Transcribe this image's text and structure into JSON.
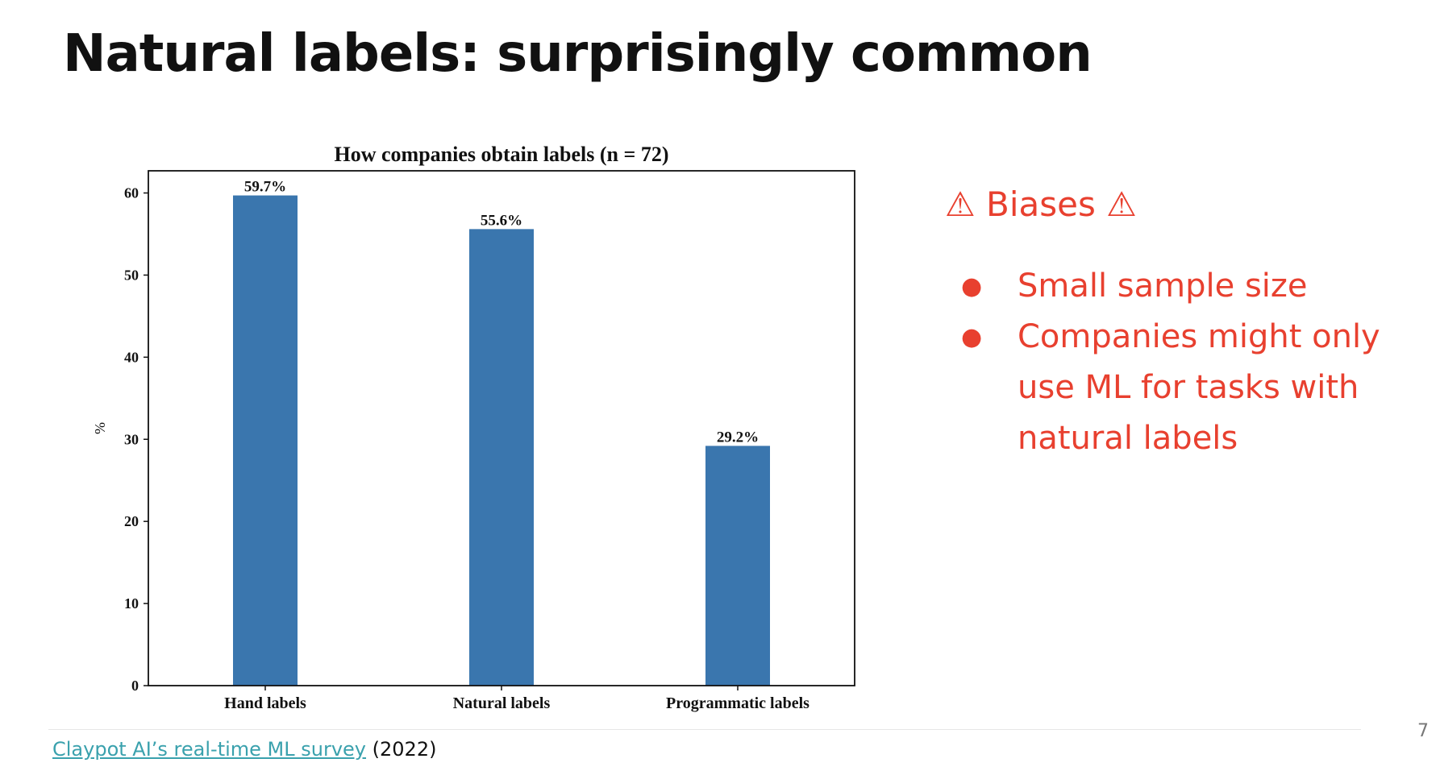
{
  "slide": {
    "title": "Natural labels: surprisingly common",
    "page_number": "7"
  },
  "biases": {
    "heading": "⚠ Biases ⚠",
    "items": [
      "Small sample size",
      "Companies might only use ML for tasks with natural labels"
    ]
  },
  "source": {
    "link_text": "Claypot AI’s real-time ML survey",
    "year": "(2022)"
  },
  "chart_data": {
    "type": "bar",
    "title": "How companies obtain labels (n = 72)",
    "xlabel": "",
    "ylabel": "%",
    "categories": [
      "Hand labels",
      "Natural labels",
      "Programmatic labels"
    ],
    "values": [
      59.7,
      55.6,
      29.2
    ],
    "data_labels": [
      "59.7%",
      "55.6%",
      "29.2%"
    ],
    "yticks": [
      0,
      10,
      20,
      30,
      40,
      50,
      60
    ],
    "ylim": [
      0,
      62.7
    ],
    "grid": false,
    "bar_color": "#3a76ae"
  }
}
